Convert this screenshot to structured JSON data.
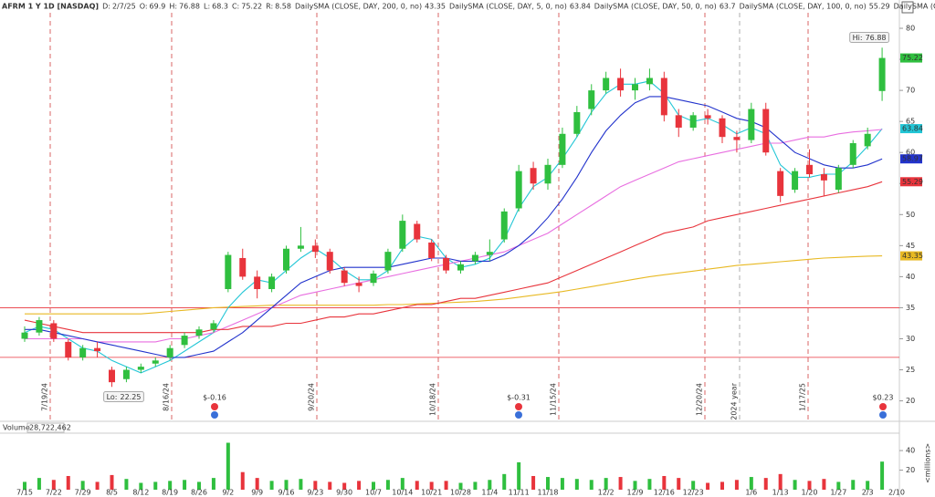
{
  "chart_data": {
    "type": "candlestick",
    "title": "AFRM 1 Y 1D [NASDAQ]",
    "header_labels": [
      "D:",
      "O:",
      "H:",
      "L:",
      "C:",
      "R:"
    ],
    "date": "2/7/25",
    "range": 8.58,
    "categories": [
      "7/15",
      null,
      "7/22",
      null,
      "7/29",
      null,
      "8/5",
      null,
      "8/12",
      null,
      "8/19",
      null,
      "8/26",
      null,
      "9/2",
      null,
      "9/9",
      null,
      "9/16",
      null,
      "9/23",
      null,
      "9/30",
      null,
      "10/7",
      null,
      "10/14",
      null,
      "10/21",
      null,
      "10/28",
      null,
      "11/4",
      null,
      "11/11",
      null,
      "11/18",
      null,
      null,
      null,
      "12/2",
      null,
      "12/9",
      null,
      "12/16",
      null,
      "12/23",
      null,
      null,
      null,
      "1/6",
      null,
      "1/13",
      null,
      "1/20",
      null,
      "1/27",
      null,
      "2/3",
      null,
      "2/10"
    ],
    "open": [
      30,
      31,
      32.5,
      29.5,
      27,
      28.5,
      25,
      23.5,
      25,
      26,
      27,
      29,
      30.5,
      31.5,
      38,
      43,
      40,
      38,
      41,
      44.5,
      45,
      44,
      41,
      39,
      39,
      41,
      44.5,
      48.5,
      45.5,
      43,
      41,
      42.5,
      43.5,
      46,
      51,
      57.5,
      55,
      58,
      63,
      67,
      70,
      72,
      70,
      71,
      72,
      66,
      64,
      66,
      65.5,
      62.5,
      62,
      67,
      57,
      54,
      58,
      56.5,
      54,
      58,
      61,
      69.9,
      null
    ],
    "high": [
      32,
      33.5,
      33,
      30,
      29,
      29.5,
      25.5,
      25.5,
      26,
      27,
      29,
      31,
      32,
      33,
      44,
      44.5,
      41,
      40.5,
      45,
      48,
      46,
      44.5,
      41.5,
      40,
      41,
      44.5,
      50,
      49,
      46,
      43.5,
      42.5,
      44,
      46,
      51,
      58,
      58.5,
      59,
      64,
      67.5,
      71,
      73,
      73.5,
      72,
      73.5,
      73,
      67,
      66.5,
      67,
      66,
      63.5,
      68,
      68,
      57.5,
      57.5,
      60.5,
      57.5,
      58,
      62,
      64,
      76.88,
      null
    ],
    "low": [
      29.5,
      30.5,
      29.5,
      26.5,
      26.5,
      27,
      22.25,
      23,
      24.5,
      25.5,
      26.5,
      28.5,
      30,
      31,
      37.5,
      39.5,
      36.5,
      37.5,
      40.5,
      44,
      43,
      40.5,
      38.5,
      37.5,
      38.5,
      40.5,
      44,
      45.5,
      42.5,
      40.5,
      40.5,
      42,
      42.5,
      45.5,
      50.5,
      54,
      54,
      57.5,
      62.5,
      66,
      69.5,
      69,
      68.5,
      70,
      65,
      62.5,
      63.5,
      64.5,
      61.5,
      60,
      61.5,
      59.5,
      52,
      53.5,
      56,
      53,
      53.5,
      57.5,
      60.5,
      68.3,
      null
    ],
    "close": [
      31,
      33,
      30,
      27,
      28.5,
      28,
      23,
      25,
      25.5,
      26.5,
      28.5,
      30.5,
      31.5,
      32.5,
      43.5,
      40,
      38,
      40,
      44.5,
      45,
      44,
      41,
      39,
      38.5,
      40.5,
      44,
      49,
      46,
      43,
      41,
      42,
      43.5,
      44,
      50.5,
      57,
      55,
      58,
      63,
      66.5,
      70,
      72,
      70,
      71,
      72,
      66,
      64,
      66,
      65.5,
      62.5,
      62,
      67,
      60,
      53,
      57,
      56.5,
      55.5,
      57.5,
      61.5,
      63,
      75.22,
      null
    ],
    "up_color": "#2fbf3f",
    "down_color": "#e8343c",
    "hi_label": "Hi:",
    "lo_label": "Lo:",
    "series": [
      {
        "name": "DailySMA (CLOSE, DAY, 200, 0, no)",
        "color": "#e8b923",
        "values": [
          34,
          34,
          34,
          34,
          34,
          34,
          34,
          34,
          34,
          34.2,
          34.4,
          34.6,
          34.8,
          35,
          35.1,
          35.2,
          35.3,
          35.4,
          35.4,
          35.4,
          35.4,
          35.4,
          35.4,
          35.4,
          35.4,
          35.5,
          35.5,
          35.6,
          35.7,
          35.8,
          35.9,
          36,
          36.2,
          36.4,
          36.7,
          37,
          37.3,
          37.6,
          38,
          38.4,
          38.8,
          39.2,
          39.6,
          40,
          40.3,
          40.6,
          40.9,
          41.2,
          41.5,
          41.8,
          42,
          42.2,
          42.4,
          42.6,
          42.8,
          43,
          43.1,
          43.2,
          43.3,
          43.35,
          null
        ]
      },
      {
        "name": "DailySMA (CLOSE, DAY, 5, 0, no)",
        "color": "#22c6d6",
        "values": [
          31,
          32,
          31.5,
          30,
          28.5,
          28,
          26.5,
          25.5,
          24.5,
          25.5,
          26.5,
          28,
          29.5,
          31,
          35,
          37.5,
          39.5,
          39,
          41,
          43,
          44.5,
          43,
          41,
          39.5,
          39.5,
          41,
          44.5,
          46.5,
          46,
          43,
          41.5,
          42,
          43,
          46,
          51,
          54.5,
          56,
          59,
          62.5,
          66.5,
          69.5,
          71,
          71,
          71.5,
          69.5,
          66,
          65,
          65.5,
          64.5,
          63,
          64,
          63,
          58,
          56,
          56,
          56.5,
          56.5,
          58.5,
          61,
          63.84,
          null
        ]
      },
      {
        "name": "DailySMA (CLOSE, DAY, 50, 0, no)",
        "color": "#e86ee0",
        "values": [
          30,
          30,
          30,
          30,
          30,
          29.5,
          29.5,
          29.5,
          29.5,
          29.5,
          30,
          30,
          30.5,
          31,
          32,
          33,
          34,
          35,
          36,
          37,
          37.5,
          38,
          38.5,
          39,
          39.5,
          40,
          40.5,
          41,
          41.5,
          42,
          42.5,
          43,
          43.5,
          44,
          45,
          46,
          47,
          48.5,
          50,
          51.5,
          53,
          54.5,
          55.5,
          56.5,
          57.5,
          58.5,
          59,
          59.5,
          60,
          60.5,
          61,
          61.5,
          61.5,
          62,
          62.5,
          62.5,
          63,
          63.3,
          63.5,
          63.7,
          null
        ]
      },
      {
        "name": "DailySMA (CLOSE, DAY, 100, 0, no)",
        "color": "#e8343c",
        "values": [
          33,
          32.5,
          32,
          31.5,
          31,
          31,
          31,
          31,
          31,
          31,
          31,
          31,
          31,
          31.5,
          31.5,
          32,
          32,
          32,
          32.5,
          32.5,
          33,
          33.5,
          33.5,
          34,
          34,
          34.5,
          35,
          35.5,
          35.5,
          36,
          36.5,
          36.5,
          37,
          37.5,
          38,
          38.5,
          39,
          40,
          41,
          42,
          43,
          44,
          45,
          46,
          47,
          47.5,
          48,
          49,
          49.5,
          50,
          50.5,
          51,
          51.5,
          52,
          52.5,
          53,
          53.5,
          54,
          54.5,
          55.29,
          null
        ]
      },
      {
        "name": "DailySMA (CLOSE, DAY, 20, 0, no)",
        "color": "#2233cc",
        "values": [
          31.5,
          31.5,
          31,
          30.5,
          30,
          29.5,
          29,
          28.5,
          28,
          27.5,
          27,
          27,
          27.5,
          28,
          29.5,
          31,
          33,
          35,
          37,
          39,
          40,
          41,
          41.5,
          41.5,
          41.5,
          41.5,
          42,
          42.5,
          43,
          43,
          42.5,
          42.5,
          42.5,
          43.5,
          45,
          47,
          49.5,
          52.5,
          56,
          60,
          63.5,
          66,
          68,
          69,
          69,
          68.5,
          68,
          67.5,
          66.5,
          65.5,
          65,
          64,
          62,
          60,
          59,
          58,
          57.5,
          57.5,
          58,
          58.97,
          null
        ]
      }
    ],
    "ylim": [
      17,
      82.5
    ],
    "yticks": [
      20,
      25,
      30,
      35,
      40,
      45,
      50,
      55,
      60,
      65,
      70,
      75,
      80
    ],
    "price_levels": [
      35,
      27
    ],
    "markers": [
      "7/19/24",
      "8/16/24",
      "9/20/24",
      "10/18/24",
      "11/15/24",
      "12/20/24",
      "2024 year",
      "1/17/25"
    ],
    "earnings": [
      "$-0.16",
      "$-0.31",
      "$0.23"
    ],
    "volume": {
      "title": "Volume",
      "current": {
        "value": 28722462,
        "label": "28,722,462"
      },
      "values": [
        8,
        12,
        10,
        14,
        9,
        8,
        15,
        11,
        7,
        8,
        9,
        10,
        8,
        12,
        48,
        18,
        12,
        9,
        10,
        11,
        9,
        8,
        7,
        9,
        8,
        10,
        12,
        9,
        8,
        9,
        7,
        8,
        10,
        16,
        28,
        14,
        13,
        12,
        11,
        10,
        12,
        13,
        9,
        11,
        14,
        12,
        9,
        7,
        8,
        10,
        13,
        12,
        16,
        10,
        9,
        11,
        8,
        10,
        9,
        28.72,
        null
      ],
      "ylim": [
        0,
        55
      ],
      "yticks": [
        20,
        40
      ],
      "unit": "<millions>"
    }
  }
}
